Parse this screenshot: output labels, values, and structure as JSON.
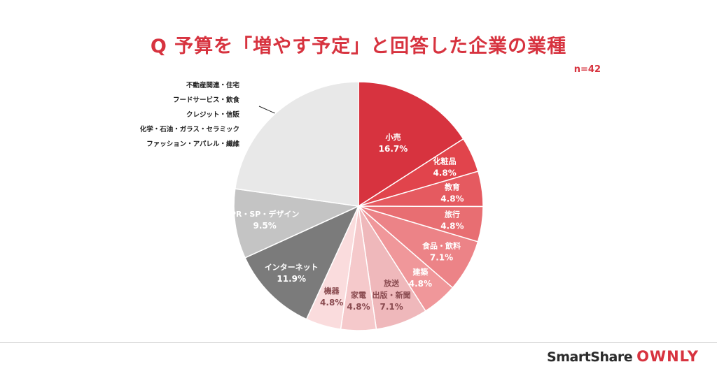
{
  "title": "Q 予算を「増やす予定」と回答した企業の業種",
  "sample_size": "n=42",
  "others_labels": [
    "不動産関連・住宅",
    "フードサービス・飲食",
    "クレジット・信販",
    "化学・石油・ガラス・セラミック",
    "ファッション・アパレル・繊維"
  ],
  "brand": {
    "part1": "SmartShare",
    "part2": "OWNLY"
  },
  "chart_data": {
    "type": "pie",
    "start": "12 o'clock, clockwise",
    "slices": [
      {
        "label": "小売",
        "value": 16.7,
        "display": "16.7%",
        "color": "#d7333f",
        "label_color": "#ffffff"
      },
      {
        "label": "化粧品",
        "value": 4.8,
        "display": "4.8%",
        "color": "#e1444c",
        "label_color": "#ffffff"
      },
      {
        "label": "教育",
        "value": 4.8,
        "display": "4.8%",
        "color": "#e55a60",
        "label_color": "#ffffff"
      },
      {
        "label": "旅行",
        "value": 4.8,
        "display": "4.8%",
        "color": "#e86e72",
        "label_color": "#ffffff"
      },
      {
        "label": "食品・飲料",
        "value": 7.1,
        "display": "7.1%",
        "color": "#ec8387",
        "label_color": "#ffffff"
      },
      {
        "label": "建築",
        "value": 4.8,
        "display": "4.8%",
        "color": "#f0979a",
        "label_color": "#ffffff"
      },
      {
        "label": "放送\n出版・新聞",
        "value": 7.1,
        "display": "7.1%",
        "color": "#efb8bb",
        "label_color": "#8a4b50"
      },
      {
        "label": "家電",
        "value": 4.8,
        "display": "4.8%",
        "color": "#f5c9cb",
        "label_color": "#8a4b50"
      },
      {
        "label": "機器",
        "value": 4.8,
        "display": "4.8%",
        "color": "#fadcdd",
        "label_color": "#8a4b50"
      },
      {
        "label": "インターネット",
        "value": 11.9,
        "display": "11.9%",
        "color": "#7b7b7b",
        "label_color": "#ffffff"
      },
      {
        "label": "PR・SP・デザイン",
        "value": 9.5,
        "display": "9.5%",
        "color": "#c4c4c4",
        "label_color": "#ffffff"
      },
      {
        "label": "",
        "value": 23.9,
        "display": "",
        "color": "#e8e8e8",
        "label_color": "#222222"
      }
    ]
  }
}
